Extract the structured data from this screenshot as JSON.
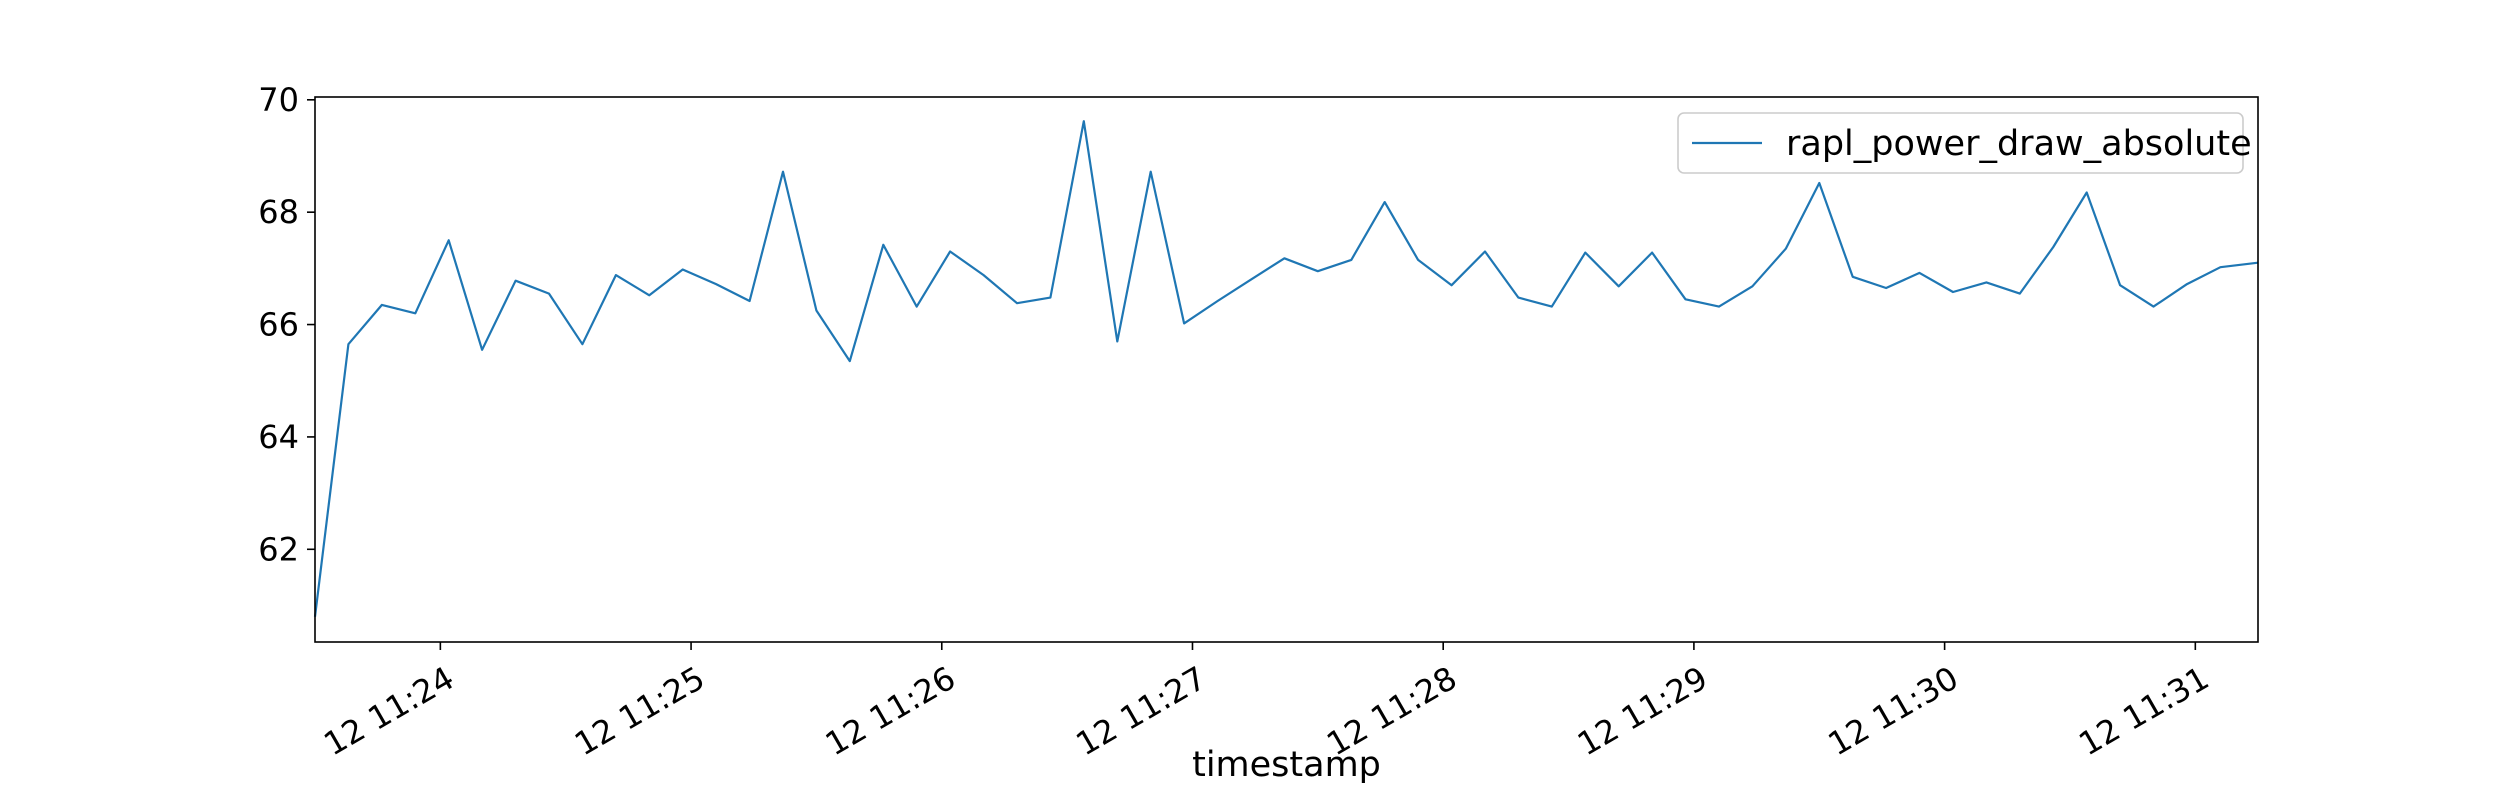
{
  "chart_data": {
    "type": "line",
    "title": "",
    "xlabel": "timestamp",
    "ylabel": "",
    "x_tick_labels": [
      "12 11:24",
      "12 11:25",
      "12 11:26",
      "12 11:27",
      "12 11:28",
      "12 11:29",
      "12 11:30",
      "12 11:31"
    ],
    "y_tick_labels": [
      "62",
      "64",
      "66",
      "68",
      "70"
    ],
    "y_ticks": [
      62,
      64,
      66,
      68,
      70
    ],
    "x_ticks": [
      "11:24:00",
      "11:25:00",
      "11:26:00",
      "11:27:00",
      "11:28:00",
      "11:29:00",
      "11:30:00",
      "11:31:00"
    ],
    "xlim": [
      "11:23:30",
      "11:31:15"
    ],
    "ylim": [
      60.35,
      70.05
    ],
    "grid": false,
    "legend_position": "top-right",
    "series": [
      {
        "name": "rapl_power_draw_absolute",
        "color": "#1f77b4",
        "x": [
          "11:23:30",
          "11:23:38",
          "11:23:46",
          "11:23:54",
          "11:24:02",
          "11:24:10",
          "11:24:18",
          "11:24:26",
          "11:24:34",
          "11:24:42",
          "11:24:50",
          "11:24:58",
          "11:25:06",
          "11:25:14",
          "11:25:22",
          "11:25:30",
          "11:25:38",
          "11:25:46",
          "11:25:54",
          "11:26:02",
          "11:26:10",
          "11:26:18",
          "11:26:26",
          "11:26:34",
          "11:26:42",
          "11:26:50",
          "11:26:58",
          "11:27:06",
          "11:27:14",
          "11:27:22",
          "11:27:30",
          "11:27:38",
          "11:27:46",
          "11:27:54",
          "11:28:02",
          "11:28:10",
          "11:28:18",
          "11:28:26",
          "11:28:34",
          "11:28:42",
          "11:28:50",
          "11:28:58",
          "11:29:06",
          "11:29:14",
          "11:29:22",
          "11:29:30",
          "11:29:38",
          "11:29:46",
          "11:29:54",
          "11:30:02",
          "11:30:10",
          "11:30:18",
          "11:30:26",
          "11:30:34",
          "11:30:42",
          "11:30:50",
          "11:30:58",
          "11:31:06",
          "11:31:15"
        ],
        "values": [
          60.8,
          65.65,
          66.35,
          66.2,
          67.5,
          65.55,
          66.78,
          66.55,
          65.65,
          66.88,
          66.52,
          66.98,
          66.72,
          66.42,
          68.72,
          66.25,
          65.35,
          67.42,
          66.32,
          67.3,
          66.88,
          66.38,
          66.48,
          69.62,
          65.7,
          68.72,
          66.02,
          66.42,
          66.8,
          67.18,
          66.95,
          67.15,
          68.18,
          67.15,
          66.7,
          67.3,
          66.48,
          66.32,
          67.28,
          66.68,
          67.28,
          66.45,
          66.32,
          66.68,
          67.35,
          68.52,
          66.85,
          66.65,
          66.92,
          66.58,
          66.75,
          66.55,
          67.38,
          68.35,
          66.7,
          66.32,
          66.72,
          67.02,
          67.1
        ]
      }
    ]
  }
}
